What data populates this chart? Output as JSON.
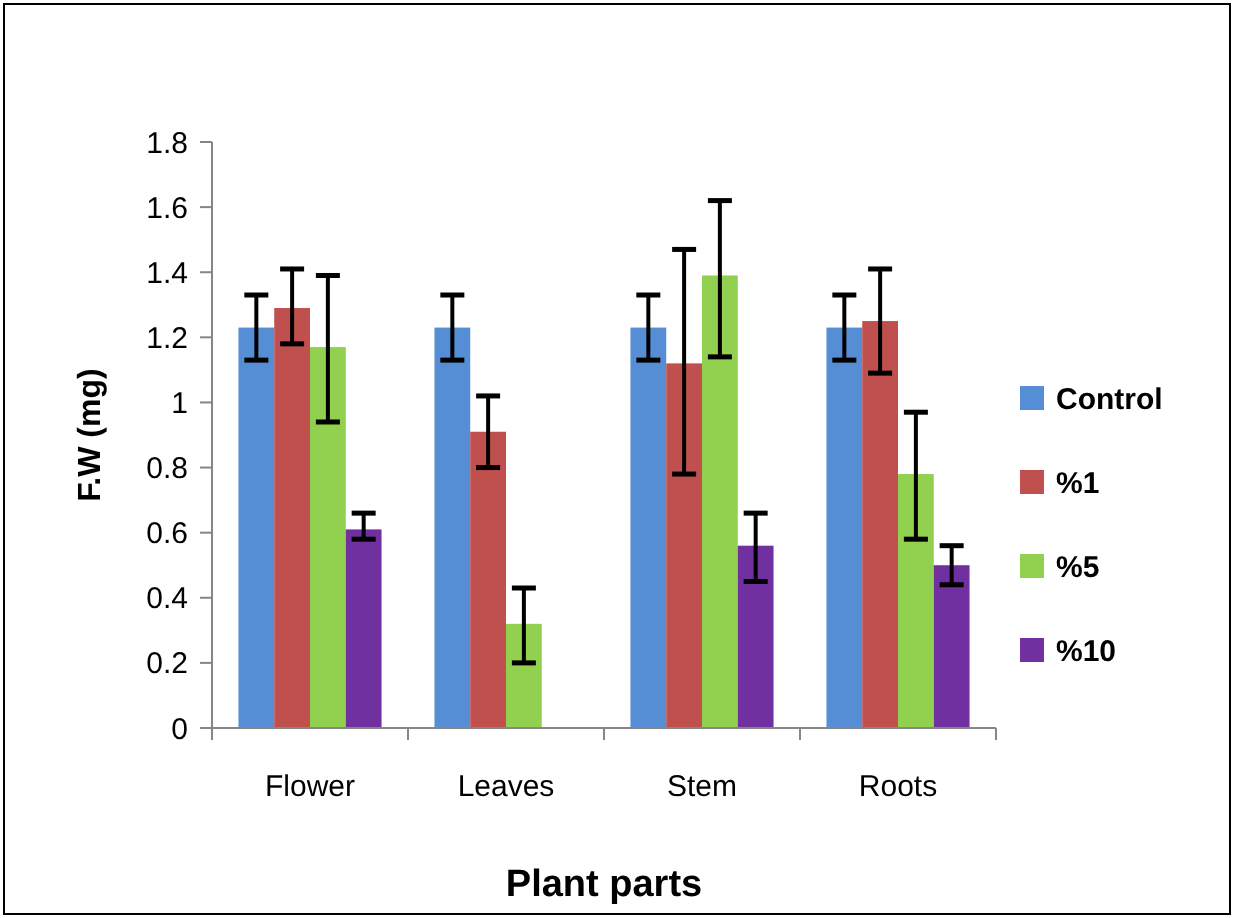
{
  "chart_data": {
    "type": "bar",
    "xlabel": "Plant parts",
    "ylabel": "F.W (mg)",
    "categories": [
      "Flower",
      "Leaves",
      "Stem",
      "Roots"
    ],
    "series": [
      {
        "name": "Control",
        "color": "#558ed5",
        "values": [
          1.23,
          1.23,
          1.23,
          1.23
        ],
        "errors": [
          [
            1.13,
            1.33
          ],
          [
            1.13,
            1.33
          ],
          [
            1.13,
            1.33
          ],
          [
            1.13,
            1.33
          ]
        ]
      },
      {
        "name": "%1",
        "color": "#c0504d",
        "values": [
          1.29,
          0.91,
          1.12,
          1.25
        ],
        "errors": [
          [
            1.18,
            1.41
          ],
          [
            0.8,
            1.02
          ],
          [
            0.78,
            1.47
          ],
          [
            1.09,
            1.41
          ]
        ]
      },
      {
        "name": "%5",
        "color": "#92d050",
        "values": [
          1.17,
          0.32,
          1.39,
          0.78
        ],
        "errors": [
          [
            0.94,
            1.39
          ],
          [
            0.2,
            0.43
          ],
          [
            1.14,
            1.62
          ],
          [
            0.58,
            0.97
          ]
        ]
      },
      {
        "name": "%10",
        "color": "#7030a0",
        "values": [
          0.61,
          null,
          0.56,
          0.5
        ],
        "errors": [
          [
            0.58,
            0.66
          ],
          null,
          [
            0.45,
            0.66
          ],
          [
            0.44,
            0.56
          ]
        ]
      }
    ],
    "ylim": [
      0,
      1.8
    ],
    "yticks": [
      0,
      0.2,
      0.4,
      0.6,
      0.8,
      1,
      1.2,
      1.4,
      1.6,
      1.8
    ],
    "grid": false,
    "legend": "right"
  }
}
